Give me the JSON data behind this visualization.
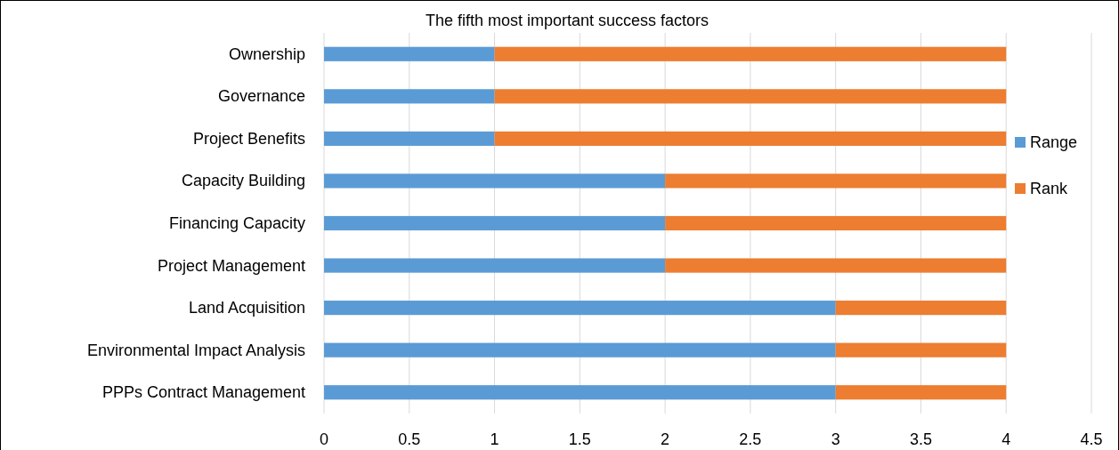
{
  "chart_data": {
    "type": "bar",
    "orientation": "horizontal",
    "stacked": true,
    "title": "The fifth most important success factors",
    "categories": [
      "Ownership",
      "Governance",
      "Project Benefits",
      "Capacity Building",
      "Financing Capacity",
      "Project Management",
      "Land Acquisition",
      "Environmental Impact Analysis",
      "PPPs  Contract Management"
    ],
    "series": [
      {
        "name": "Range",
        "color": "#5b9bd5",
        "values": [
          1,
          1,
          1,
          2,
          2,
          2,
          3,
          3,
          3
        ]
      },
      {
        "name": "Rank",
        "color": "#ed7d31",
        "values": [
          3,
          3,
          3,
          2,
          2,
          2,
          1,
          1,
          1
        ]
      }
    ],
    "xlim": [
      0,
      4.5
    ],
    "xticks": [
      0,
      0.5,
      1,
      1.5,
      2,
      2.5,
      3,
      3.5,
      4,
      4.5
    ],
    "grid": "x",
    "legend": "right"
  }
}
